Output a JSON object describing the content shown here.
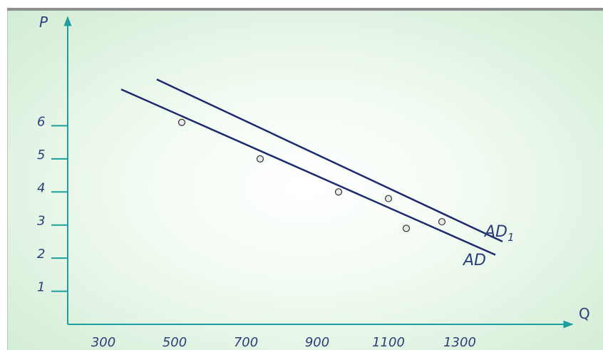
{
  "chart_data": {
    "type": "line",
    "title": "",
    "xlabel": "Q",
    "ylabel": "P",
    "x_ticks": [
      "300",
      "500",
      "700",
      "900",
      "1100",
      "1300"
    ],
    "y_ticks": [
      "1",
      "2",
      "3",
      "4",
      "5",
      "6"
    ],
    "xlim": [
      200,
      1420
    ],
    "ylim": [
      0,
      8.4
    ],
    "grid": false,
    "series": [
      {
        "name": "AD",
        "color": "#1d2a6e",
        "x": [
          350,
          1400
        ],
        "y": [
          7.1,
          2.1
        ],
        "points": [
          [
            520,
            6.1
          ],
          [
            740,
            5.0
          ],
          [
            960,
            4.0
          ],
          [
            1150,
            2.9
          ]
        ]
      },
      {
        "name": "AD1",
        "label_main": "AD",
        "label_sub": "1",
        "color": "#1d2a6e",
        "x": [
          450,
          1420
        ],
        "y": [
          7.4,
          2.5
        ],
        "points": [
          [
            1100,
            3.8
          ],
          [
            1250,
            3.1
          ]
        ]
      }
    ],
    "colors": {
      "axis": "#1e9e9e",
      "text": "#2c3e7a",
      "point_fill": "#e8e8e8",
      "point_stroke": "#333333"
    }
  }
}
